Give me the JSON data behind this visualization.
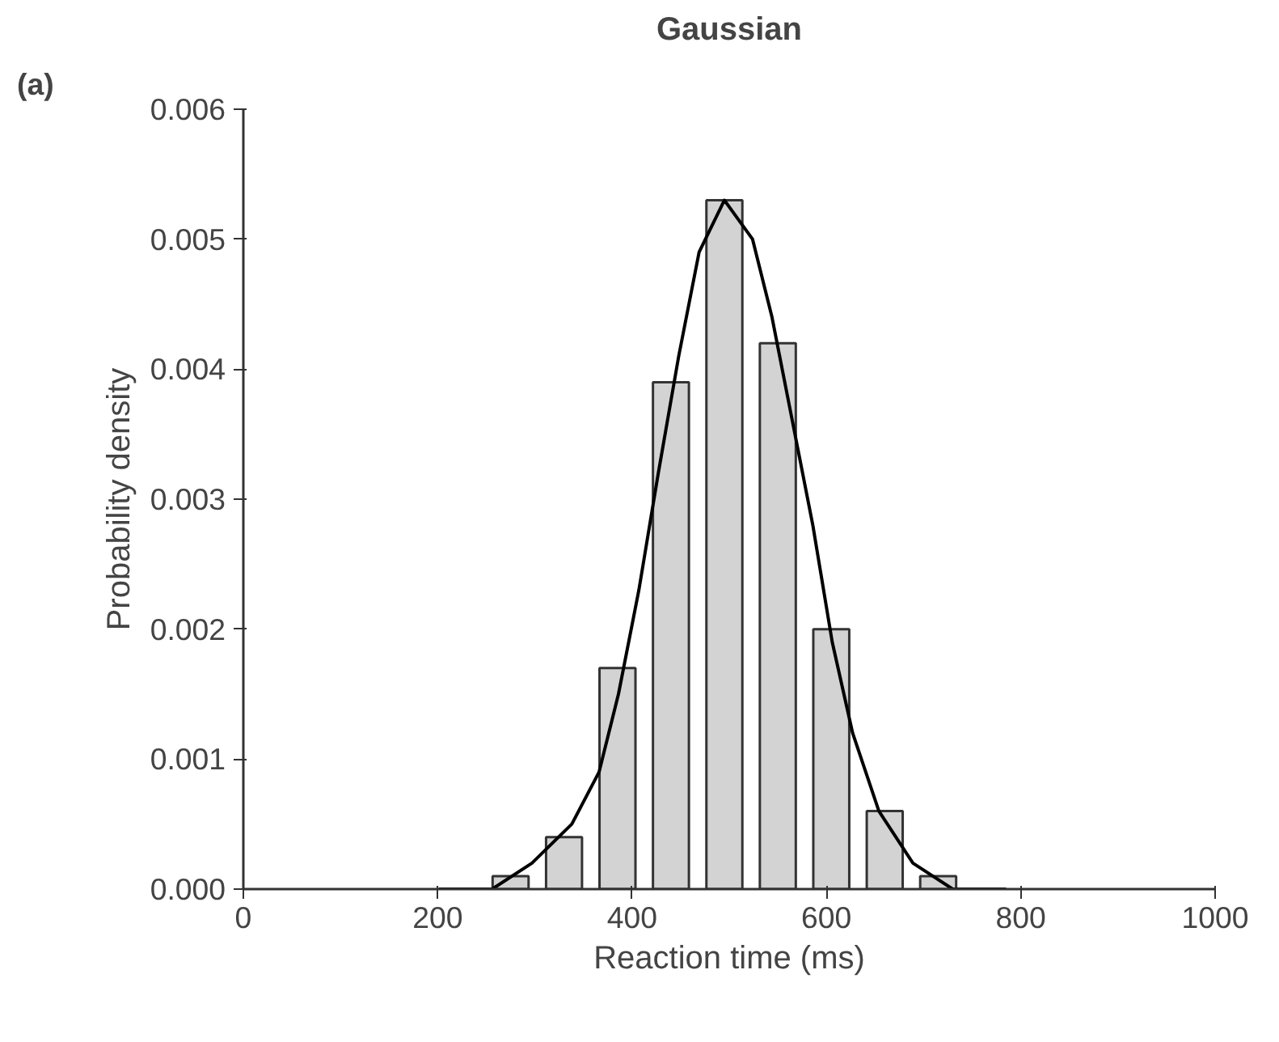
{
  "chart_data": {
    "type": "bar",
    "title": "Gaussian",
    "xlabel": "Reaction time (ms)",
    "ylabel": "Probability density",
    "annotations": [
      "(a)"
    ],
    "xlim": [
      0,
      1000
    ],
    "xticks": [
      0,
      200,
      400,
      600,
      800,
      1000
    ],
    "ylim": [
      0,
      0.006
    ],
    "yticks": [
      {
        "value": 0,
        "label": "0.000"
      },
      {
        "value": 0.001,
        "label": "0.001"
      },
      {
        "value": 0.002,
        "label": "0.002"
      },
      {
        "value": 0.003,
        "label": "0.003"
      },
      {
        "value": 0.004,
        "label": "0.004"
      },
      {
        "value": 0.005,
        "label": "0.005"
      },
      {
        "value": 0.006,
        "label": "0.006"
      }
    ],
    "grid": false,
    "series": [
      {
        "color": "#d3d3d3",
        "x": [
          275,
          330,
          385,
          440,
          495,
          550,
          605,
          660,
          715
        ],
        "values": [
          0.0001,
          0.0004,
          0.0017,
          0.0039,
          0.0053,
          0.0042,
          0.002,
          0.0006,
          0.0001
        ]
      },
      {
        "type": "line",
        "color": "#000000",
        "x": [
          201,
          256,
          297,
          338,
          366,
          386,
          407,
          427,
          448,
          469,
          495,
          524,
          544,
          565,
          586,
          606,
          627,
          654,
          689,
          730,
          785
        ],
        "values": [
          0,
          0,
          0.0002,
          0.0005,
          0.0009,
          0.0015,
          0.0023,
          0.0032,
          0.0041,
          0.0049,
          0.0053,
          0.005,
          0.0044,
          0.0036,
          0.0028,
          0.0019,
          0.0012,
          0.0006,
          0.0002,
          0,
          0
        ]
      }
    ]
  }
}
